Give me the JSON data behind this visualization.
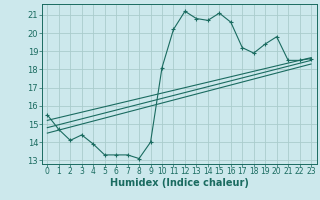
{
  "title": "",
  "xlabel": "Humidex (Indice chaleur)",
  "bg_color": "#cce8ec",
  "grid_color": "#aacccc",
  "line_color": "#1a6b60",
  "xlim": [
    -0.5,
    23.5
  ],
  "ylim": [
    12.8,
    21.6
  ],
  "yticks": [
    13,
    14,
    15,
    16,
    17,
    18,
    19,
    20,
    21
  ],
  "xticks": [
    0,
    1,
    2,
    3,
    4,
    5,
    6,
    7,
    8,
    9,
    10,
    11,
    12,
    13,
    14,
    15,
    16,
    17,
    18,
    19,
    20,
    21,
    22,
    23
  ],
  "main_x": [
    0,
    1,
    2,
    3,
    4,
    5,
    6,
    7,
    8,
    9,
    10,
    11,
    12,
    13,
    14,
    15,
    16,
    17,
    18,
    19,
    20,
    21,
    22,
    23
  ],
  "main_y": [
    15.5,
    14.7,
    14.1,
    14.4,
    13.9,
    13.3,
    13.3,
    13.3,
    13.1,
    14.0,
    18.1,
    20.2,
    21.2,
    20.8,
    20.7,
    21.1,
    20.6,
    19.2,
    18.9,
    19.4,
    19.8,
    18.5,
    18.5,
    18.6
  ],
  "reg_lines": [
    {
      "x": [
        0,
        23
      ],
      "y": [
        14.5,
        18.3
      ]
    },
    {
      "x": [
        0,
        23
      ],
      "y": [
        14.8,
        18.5
      ]
    },
    {
      "x": [
        0,
        23
      ],
      "y": [
        15.2,
        18.65
      ]
    }
  ],
  "xlabel_fontsize": 7,
  "tick_fontsize": 5.5
}
